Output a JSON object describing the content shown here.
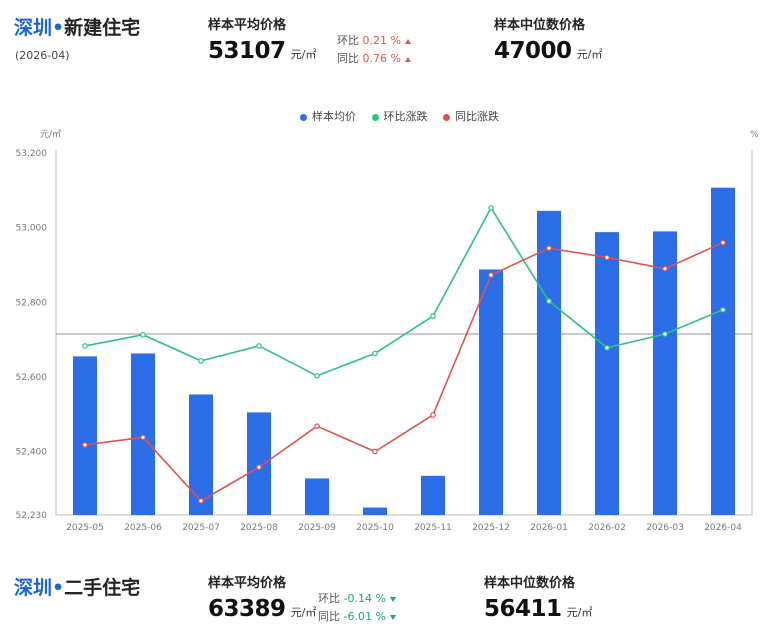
{
  "panel_new": {
    "city": "深圳",
    "separator": "•",
    "kind": "新建住宅",
    "period": "(2026-04)",
    "avg_label": "样本平均价格",
    "avg_value": "53107",
    "avg_unit": "元/㎡",
    "mom_label": "环比",
    "mom_value": "0.21 %",
    "yoy_label": "同比",
    "yoy_value": "0.76 %",
    "median_label": "样本中位数价格",
    "median_value": "47000",
    "median_unit": "元/㎡"
  },
  "panel_second": {
    "city": "深圳",
    "separator": "•",
    "kind": "二手住宅",
    "avg_label": "样本平均价格",
    "avg_value": "63389",
    "avg_unit": "元/㎡",
    "mom_label": "环比",
    "mom_value": "-0.14 %",
    "yoy_label": "同比",
    "yoy_value": "-6.01 %",
    "median_label": "样本中位数价格",
    "median_value": "56411",
    "median_unit": "元/㎡"
  },
  "colors": {
    "bar": "#2c6ee8",
    "mom_line": "#2ec27e",
    "yoy_line": "#e0524e",
    "brand": "#1a64d6"
  },
  "chart_data": {
    "type": "bar",
    "categories": [
      "2025-05",
      "2025-06",
      "2025-07",
      "2025-08",
      "2025-09",
      "2025-10",
      "2025-11",
      "2025-12",
      "2026-01",
      "2026-02",
      "2026-03",
      "2026-04"
    ],
    "y_left_unit": "元/㎡",
    "y_right_unit": "%",
    "ylim": [
      52230,
      53200
    ],
    "y_ticks": [
      52230,
      52400,
      52600,
      52800,
      53000,
      53200
    ],
    "y_tick_labels": [
      "52,230",
      "52,400",
      "52,600",
      "52,800",
      "53,000",
      "53,200"
    ],
    "reference_value": 52715,
    "legend": [
      "样本均价",
      "环比涨跌",
      "同比涨跌"
    ],
    "series": [
      {
        "name": "样本均价",
        "kind": "bar",
        "values": [
          52655,
          52663,
          52553,
          52505,
          52328,
          52250,
          52335,
          52888,
          53045,
          52988,
          52990,
          53107
        ]
      },
      {
        "name": "环比涨跌",
        "kind": "line",
        "values": [
          52683,
          52713,
          52643,
          52683,
          52603,
          52663,
          52763,
          53053,
          52803,
          52678,
          52715,
          52780
        ]
      },
      {
        "name": "同比涨跌",
        "kind": "line",
        "values": [
          52418,
          52438,
          52268,
          52358,
          52468,
          52400,
          52498,
          52873,
          52945,
          52920,
          52890,
          52960
        ]
      }
    ]
  }
}
